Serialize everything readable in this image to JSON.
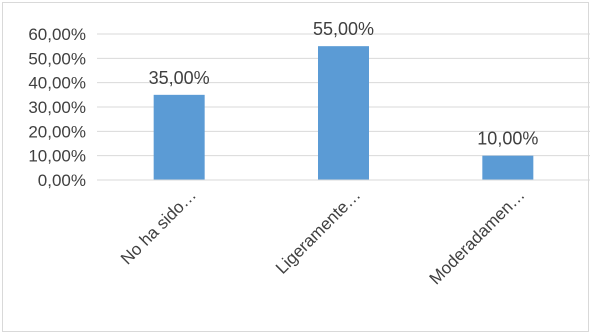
{
  "chart_data": {
    "type": "bar",
    "categories": [
      "No ha sido…",
      "Ligeramente…",
      "Moderadamen…"
    ],
    "values": [
      35,
      55,
      10
    ],
    "data_labels": [
      "35,00%",
      "55,00%",
      "10,00%"
    ],
    "ylim": [
      0,
      60
    ],
    "yticks": [
      0,
      10,
      20,
      30,
      40,
      50,
      60
    ],
    "ytick_labels": [
      "0,00%",
      "10,00%",
      "20,00%",
      "30,00%",
      "40,00%",
      "50,00%",
      "60,00%"
    ],
    "grid": true,
    "bar_color": "#5B9BD5",
    "title": "",
    "xlabel": "",
    "ylabel": ""
  }
}
